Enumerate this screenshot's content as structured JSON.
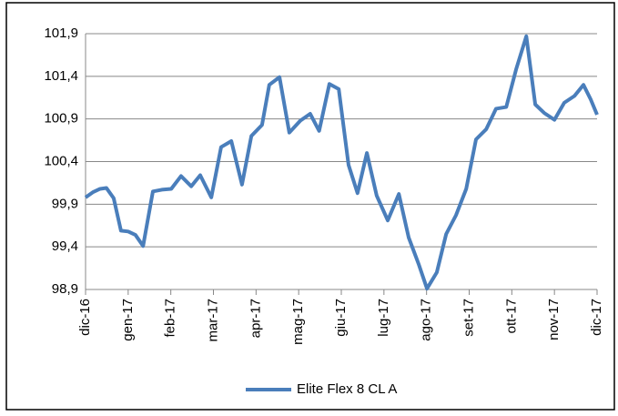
{
  "chart_data": {
    "type": "line",
    "x": [
      0,
      0.17,
      0.34,
      0.49,
      0.66,
      0.83,
      1.0,
      1.17,
      1.35,
      1.58,
      1.79,
      2.01,
      2.24,
      2.48,
      2.69,
      2.95,
      3.18,
      3.42,
      3.67,
      3.89,
      4.14,
      4.31,
      4.55,
      4.78,
      5.04,
      5.27,
      5.48,
      5.72,
      5.94,
      6.17,
      6.38,
      6.6,
      6.83,
      7.09,
      7.35,
      7.58,
      7.82,
      8.01,
      8.24,
      8.46,
      8.69,
      8.93,
      9.16,
      9.4,
      9.63,
      9.87,
      10.1,
      10.34,
      10.55,
      10.76,
      11.0,
      11.23,
      11.47,
      11.68,
      11.85,
      12.0
    ],
    "series": [
      {
        "name": "Elite Flex 8 CL A",
        "color": "#4a7ebb",
        "values": [
          99.98,
          100.04,
          100.08,
          100.09,
          99.97,
          99.59,
          99.58,
          99.54,
          99.41,
          100.05,
          100.07,
          100.08,
          100.23,
          100.11,
          100.24,
          99.98,
          100.57,
          100.64,
          100.13,
          100.7,
          100.83,
          101.3,
          101.39,
          100.74,
          100.88,
          100.96,
          100.76,
          101.31,
          101.25,
          100.36,
          100.03,
          100.5,
          100.0,
          99.71,
          100.02,
          99.51,
          99.19,
          98.91,
          99.1,
          99.55,
          99.77,
          100.08,
          100.66,
          100.78,
          101.02,
          101.04,
          101.48,
          101.87,
          101.07,
          100.97,
          100.89,
          101.09,
          101.17,
          101.3,
          101.13,
          100.95
        ]
      }
    ],
    "xlim": [
      0,
      12
    ],
    "xticks": [
      {
        "value": 0,
        "label": "dic-16"
      },
      {
        "value": 1,
        "label": "gen-17"
      },
      {
        "value": 2,
        "label": "feb-17"
      },
      {
        "value": 3,
        "label": "mar-17"
      },
      {
        "value": 4,
        "label": "apr-17"
      },
      {
        "value": 5,
        "label": "mag-17"
      },
      {
        "value": 6,
        "label": "giu-17"
      },
      {
        "value": 7,
        "label": "lug-17"
      },
      {
        "value": 8,
        "label": "ago-17"
      },
      {
        "value": 9,
        "label": "set-17"
      },
      {
        "value": 10,
        "label": "ott-17"
      },
      {
        "value": 11,
        "label": "nov-17"
      },
      {
        "value": 12,
        "label": "dic-17"
      }
    ],
    "ylim": [
      98.9,
      101.9
    ],
    "yticks": [
      {
        "value": 98.9,
        "label": "98,9"
      },
      {
        "value": 99.4,
        "label": "99,4"
      },
      {
        "value": 99.9,
        "label": "99,9"
      },
      {
        "value": 100.4,
        "label": "100,4"
      },
      {
        "value": 100.9,
        "label": "100,9"
      },
      {
        "value": 101.4,
        "label": "101,4"
      },
      {
        "value": 101.9,
        "label": "101,9"
      }
    ],
    "grid": true,
    "legend": "bottom"
  }
}
